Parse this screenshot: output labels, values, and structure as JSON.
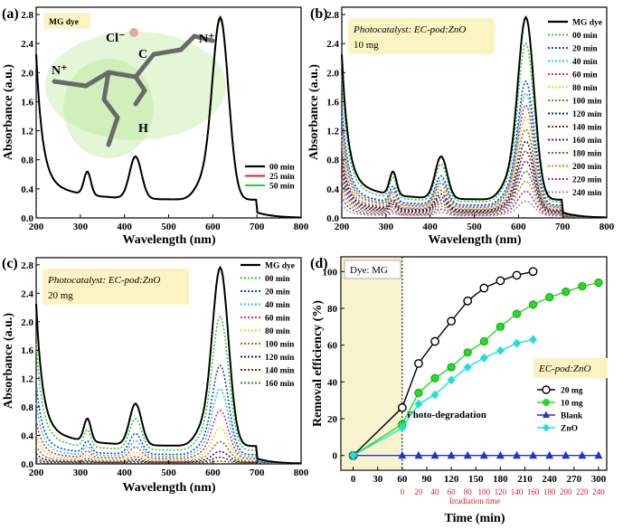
{
  "figure": {
    "x_label": "Wavelength (nm)",
    "y_label": "Absorbance (a.u.)",
    "x_ticks": [
      200,
      300,
      400,
      500,
      600,
      700,
      800
    ],
    "y_ticks": [
      "0.0",
      "0.4",
      "0.8",
      "1.2",
      "1.6",
      "2.0",
      "2.4",
      "2.8"
    ]
  },
  "chart_data": [
    {
      "panel": "(a)",
      "type": "line",
      "xlabel": "Wavelength (nm)",
      "ylabel": "Absorbance (a.u.)",
      "xlim": [
        200,
        800
      ],
      "ylim": [
        0,
        2.9
      ],
      "tag": "MG dye",
      "molecule_labels": [
        "Cl⁻",
        "C",
        "N⁺",
        "N⁺",
        "H"
      ],
      "series": [
        {
          "name": "00 min",
          "color": "#000000",
          "scale": 1.0
        },
        {
          "name": "25 min",
          "color": "#d62728",
          "scale": 0.995
        },
        {
          "name": "50 min",
          "color": "#33cc33",
          "scale": 0.99
        }
      ]
    },
    {
      "panel": "(b)",
      "type": "line",
      "xlabel": "Wavelength (nm)",
      "ylabel": "Absorbance (a.u.)",
      "xlim": [
        200,
        800
      ],
      "ylim": [
        0,
        2.9
      ],
      "caption_lines": [
        "Photocatalyst: EC-pod:ZnO",
        "10 mg"
      ],
      "series": [
        {
          "name": "MG dye",
          "color": "#000000",
          "scale": 1.0
        },
        {
          "name": "00 min",
          "color": "#33cc33",
          "scale": 0.87
        },
        {
          "name": "20 min",
          "color": "#1f3fbf",
          "scale": 0.68
        },
        {
          "name": "40 min",
          "color": "#1fcfcf",
          "scale": 0.62
        },
        {
          "name": "60 min",
          "color": "#e0287d",
          "scale": 0.56
        },
        {
          "name": "80 min",
          "color": "#e6d22a",
          "scale": 0.5
        },
        {
          "name": "100 min",
          "color": "#8a7a1a",
          "scale": 0.44
        },
        {
          "name": "120 min",
          "color": "#1a1a8a",
          "scale": 0.38
        },
        {
          "name": "140 min",
          "color": "#8a1a1a",
          "scale": 0.33
        },
        {
          "name": "160 min",
          "color": "#5a1a8a",
          "scale": 0.28
        },
        {
          "name": "180 min",
          "color": "#2a8a2a",
          "scale": 0.23
        },
        {
          "name": "200 min",
          "color": "#f07a1a",
          "scale": 0.18
        },
        {
          "name": "220 min",
          "color": "#8a2ad6",
          "scale": 0.13
        },
        {
          "name": "240 min",
          "color": "#999999",
          "scale": 0.08
        }
      ]
    },
    {
      "panel": "(c)",
      "type": "line",
      "xlabel": "Wavelength (nm)",
      "ylabel": "Absorbance (a.u.)",
      "xlim": [
        200,
        800
      ],
      "ylim": [
        0,
        2.9
      ],
      "caption_lines": [
        "Photocatalyst: EC-pod:ZnO",
        "20 mg"
      ],
      "series": [
        {
          "name": "MG dye",
          "color": "#000000",
          "scale": 1.0
        },
        {
          "name": "00 min",
          "color": "#33cc33",
          "scale": 0.75
        },
        {
          "name": "20 min",
          "color": "#1f3fbf",
          "scale": 0.5
        },
        {
          "name": "40 min",
          "color": "#1fcfcf",
          "scale": 0.38
        },
        {
          "name": "60 min",
          "color": "#e0287d",
          "scale": 0.27
        },
        {
          "name": "80 min",
          "color": "#e6d22a",
          "scale": 0.18
        },
        {
          "name": "100 min",
          "color": "#8a7a1a",
          "scale": 0.11
        },
        {
          "name": "120 min",
          "color": "#1a1a8a",
          "scale": 0.06
        },
        {
          "name": "140 min",
          "color": "#8a1a1a",
          "scale": 0.03
        },
        {
          "name": "160 min",
          "color": "#2a8a2a",
          "scale": 0.01
        }
      ]
    },
    {
      "panel": "(d)",
      "type": "line",
      "xlabel": "Time (min)",
      "ylabel": "Removal efficiency (%)",
      "xlim": [
        -15,
        310
      ],
      "ylim": [
        -8,
        108
      ],
      "x_ticks": [
        0,
        30,
        60,
        90,
        120,
        150,
        180,
        210,
        240,
        270,
        300
      ],
      "y_ticks": [
        0,
        20,
        40,
        60,
        80,
        100
      ],
      "secondary_x_label": "Irradiation time",
      "secondary_x_ticks": [
        0,
        20,
        40,
        60,
        80,
        100,
        120,
        140,
        160,
        180,
        200,
        220,
        240
      ],
      "shaded_label": "Dye: MG",
      "annotation": "Photo-degradation",
      "legend_title": "EC-pod:ZnO",
      "series": [
        {
          "name": "20 mg",
          "color": "#000000",
          "marker": "circle-open",
          "x": [
            0,
            60,
            80,
            100,
            120,
            140,
            160,
            180,
            200,
            220
          ],
          "y": [
            0,
            26,
            50,
            62,
            73,
            84,
            91,
            95,
            98,
            100
          ]
        },
        {
          "name": "10 mg",
          "color": "#22dd22",
          "marker": "circle",
          "x": [
            0,
            60,
            80,
            100,
            120,
            140,
            160,
            180,
            200,
            220,
            240,
            260,
            280,
            300
          ],
          "y": [
            0,
            17,
            34,
            42,
            48,
            56,
            62,
            70,
            77,
            82,
            86,
            89,
            92,
            94
          ]
        },
        {
          "name": "Blank",
          "color": "#2233cc",
          "marker": "triangle",
          "x": [
            0,
            60,
            80,
            100,
            120,
            140,
            160,
            180,
            200,
            220,
            240,
            260,
            280,
            300
          ],
          "y": [
            0,
            0,
            0,
            0,
            0,
            0,
            0,
            0,
            0,
            0,
            0,
            0,
            0,
            0
          ]
        },
        {
          "name": "ZnO",
          "color": "#22dddd",
          "marker": "diamond",
          "x": [
            0,
            60,
            80,
            100,
            120,
            140,
            160,
            180,
            200,
            220
          ],
          "y": [
            0,
            15,
            28,
            33,
            41,
            48,
            53,
            57,
            61,
            63
          ]
        }
      ]
    }
  ],
  "colors": {
    "shade": "#f7f3cf",
    "caption_box": "#fbf3c2",
    "red": "#cc2222"
  }
}
